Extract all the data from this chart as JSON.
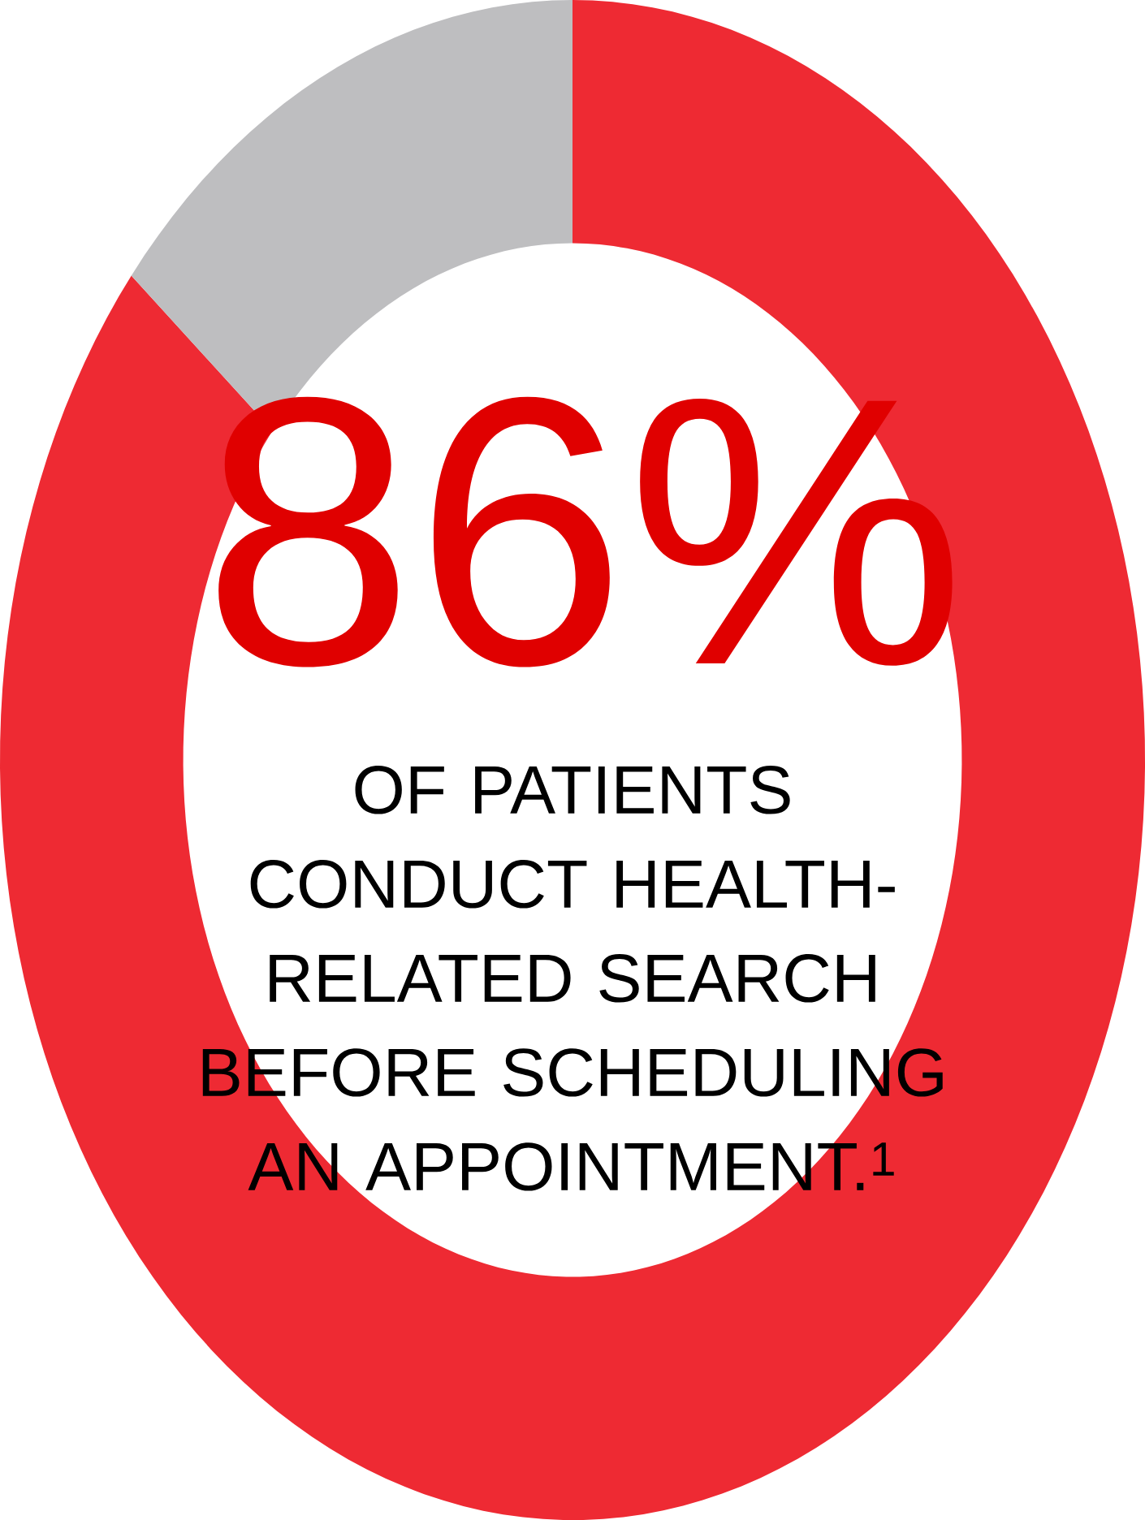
{
  "chart_data": {
    "type": "donut",
    "title": "OF PATIENTS CONDUCT HEALTH-RELATED SEARCH BEFORE SCHEDULING AN APPOINTMENT.$^{1}$",
    "categories": [
      null,
      null
    ],
    "values": [
      86,
      14
    ],
    "colors": [
      "#ee2a33",
      "#bebec0"
    ],
    "value_labels": [
      "86%",
      null
    ]
  }
}
